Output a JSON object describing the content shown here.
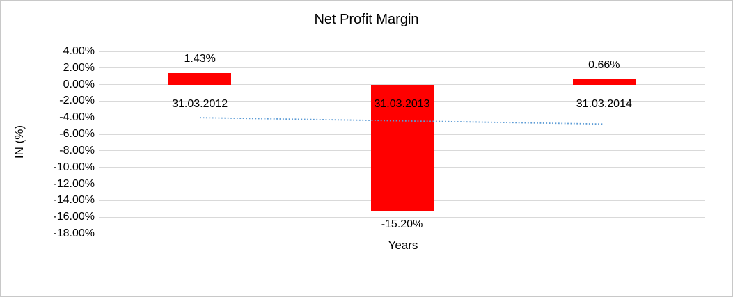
{
  "chart_data": {
    "type": "bar",
    "title": "Net Profit Margin",
    "xlabel": "Years",
    "ylabel": "IN (%)",
    "categories": [
      "31.03.2012",
      "31.03.2013",
      "31.03.2014"
    ],
    "values": [
      1.43,
      -15.2,
      0.66
    ],
    "data_labels": [
      "1.43%",
      "-15.20%",
      "0.66%"
    ],
    "ylim": [
      -18,
      4
    ],
    "ytick_step": 2,
    "ytick_labels": [
      "4.00%",
      "2.00%",
      "0.00%",
      "-2.00%",
      "-4.00%",
      "-6.00%",
      "-8.00%",
      "-10.00%",
      "-12.00%",
      "-14.00%",
      "-16.00%",
      "-18.00%"
    ],
    "grid": true,
    "legend": "none",
    "series_name": "Net Profit Margin",
    "trendline": {
      "type": "linear",
      "style": "dotted",
      "start_value": -3.99,
      "end_value": -4.76
    },
    "colors": {
      "bar": "#FF0000",
      "gridline": "#D9D9D9",
      "trendline": "#5B9BD5",
      "text": "#000000",
      "frame_border": "#C8C8C8",
      "background": "#FFFFFF"
    }
  }
}
